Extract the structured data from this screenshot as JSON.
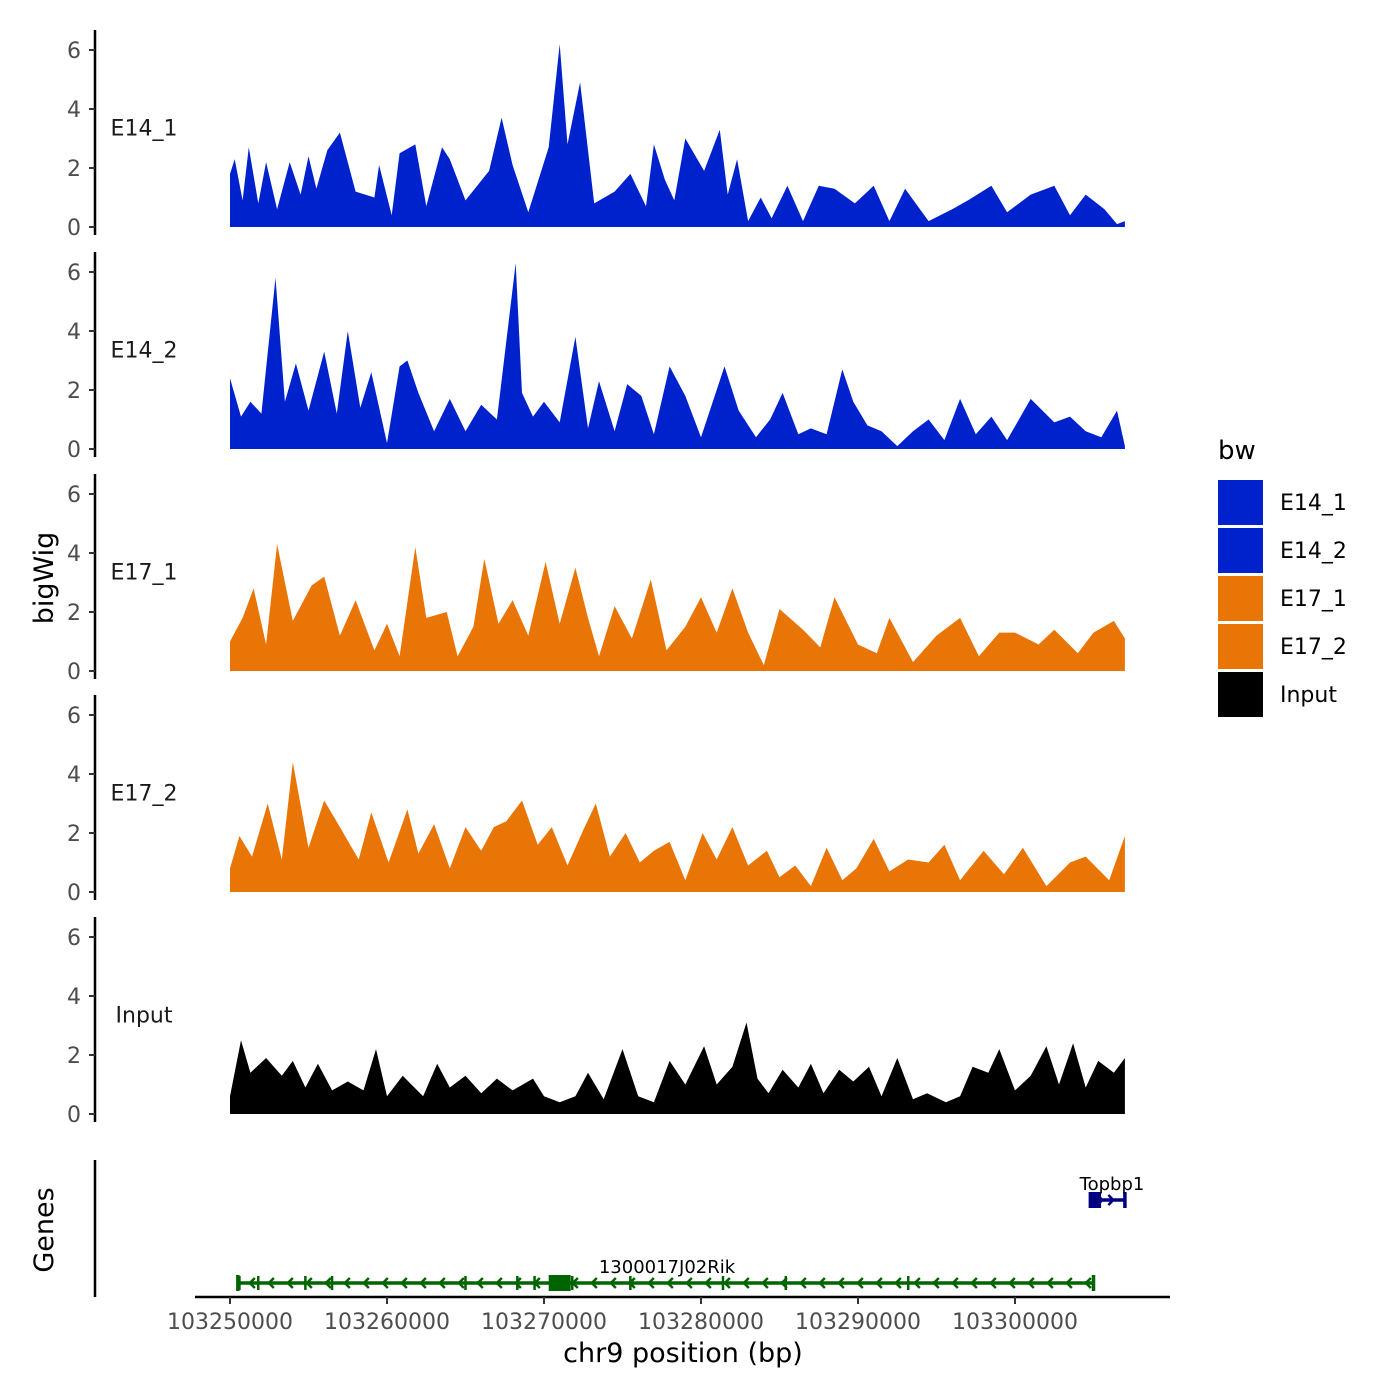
{
  "chart_data": {
    "type": "area",
    "chromosome": "chr9",
    "x_range": [
      103250000,
      103307000
    ],
    "xlabel": "chr9 position (bp)",
    "ylabel": "bigWig",
    "genes_label": "Genes",
    "x_ticks": [
      103250000,
      103260000,
      103270000,
      103280000,
      103290000,
      103300000
    ],
    "x_tick_labels": [
      "103250000",
      "103260000",
      "103270000",
      "103280000",
      "103290000",
      "103300000"
    ],
    "y_ticks": [
      0,
      2,
      4,
      6
    ],
    "y_tick_labels": [
      "0",
      "2",
      "4",
      "6"
    ],
    "ylim": [
      0,
      6.7
    ],
    "legend": {
      "title": "bw",
      "position": "right",
      "entries": [
        {
          "label": "E14_1",
          "color": "#0022CC"
        },
        {
          "label": "E14_2",
          "color": "#0022CC"
        },
        {
          "label": "E17_1",
          "color": "#E87506"
        },
        {
          "label": "E17_2",
          "color": "#E87506"
        },
        {
          "label": "Input",
          "color": "#000000"
        }
      ]
    },
    "tracks": [
      {
        "name": "E14_1",
        "color": "#0022CC",
        "x": [
          103250000,
          103250300,
          103250800,
          103251200,
          103251800,
          103252300,
          103253000,
          103253800,
          103254500,
          103255000,
          103255500,
          103256200,
          103257000,
          103258000,
          103259200,
          103259500,
          103260300,
          103260800,
          103261800,
          103262500,
          103263500,
          103264000,
          103265000,
          103266500,
          103267300,
          103268000,
          103269000,
          103270300,
          103271000,
          103271500,
          103272300,
          103273200,
          103274500,
          103275500,
          103276500,
          103277000,
          103277700,
          103278300,
          103279000,
          103280200,
          103281200,
          103281700,
          103282300,
          103283000,
          103283800,
          103284500,
          103285500,
          103286500,
          103287500,
          103288500,
          103289800,
          103291000,
          103292000,
          103293000,
          103294500,
          103296000,
          103297000,
          103298500,
          103299500,
          103301000,
          103302500,
          103303500,
          103304500,
          103305700,
          103306500,
          103307000
        ],
        "y": [
          1.8,
          2.3,
          0.9,
          2.7,
          0.8,
          2.2,
          0.6,
          2.2,
          1.1,
          2.4,
          1.3,
          2.6,
          3.2,
          1.2,
          1.0,
          2.1,
          0.4,
          2.5,
          2.8,
          0.7,
          2.7,
          2.3,
          0.9,
          1.9,
          3.7,
          2.1,
          0.5,
          2.7,
          6.2,
          2.8,
          4.9,
          0.8,
          1.2,
          1.8,
          0.7,
          2.8,
          1.6,
          0.9,
          3.0,
          1.9,
          3.3,
          1.1,
          2.3,
          0.2,
          1.0,
          0.3,
          1.4,
          0.2,
          1.4,
          1.3,
          0.8,
          1.4,
          0.2,
          1.3,
          0.2,
          0.6,
          0.9,
          1.4,
          0.5,
          1.1,
          1.4,
          0.4,
          1.1,
          0.6,
          0.1,
          0.2
        ]
      },
      {
        "name": "E14_2",
        "color": "#0022CC",
        "x": [
          103250000,
          103250700,
          103251300,
          103252000,
          103252900,
          103253500,
          103254200,
          103255000,
          103256000,
          103256800,
          103257500,
          103258300,
          103259000,
          103260000,
          103260800,
          103261300,
          103262000,
          103263000,
          103264000,
          103265000,
          103266000,
          103267000,
          103268200,
          103268600,
          103269300,
          103270000,
          103271000,
          103272000,
          103272800,
          103273500,
          103274500,
          103275300,
          103276200,
          103277000,
          103278000,
          103279000,
          103280000,
          103281500,
          103282400,
          103283500,
          103284400,
          103285200,
          103286200,
          103287000,
          103288000,
          103289000,
          103289700,
          103290600,
          103291500,
          103292500,
          103293500,
          103294500,
          103295500,
          103296500,
          103297500,
          103298500,
          103299500,
          103301000,
          103302500,
          103303500,
          103304500,
          103305500,
          103306500,
          103307000
        ],
        "y": [
          2.4,
          1.1,
          1.6,
          1.2,
          5.8,
          1.6,
          2.9,
          1.3,
          3.3,
          1.2,
          4.0,
          1.4,
          2.6,
          0.2,
          2.8,
          3.0,
          1.9,
          0.6,
          1.7,
          0.6,
          1.5,
          1.0,
          6.3,
          1.9,
          1.1,
          1.6,
          0.9,
          3.8,
          0.7,
          2.3,
          0.6,
          2.2,
          1.8,
          0.5,
          2.8,
          1.8,
          0.4,
          2.8,
          1.3,
          0.4,
          1.0,
          1.9,
          0.5,
          0.7,
          0.5,
          2.7,
          1.6,
          0.8,
          0.6,
          0.1,
          0.6,
          1.0,
          0.3,
          1.7,
          0.5,
          1.1,
          0.3,
          1.7,
          0.9,
          1.1,
          0.6,
          0.4,
          1.3,
          0.1
        ]
      },
      {
        "name": "E17_1",
        "color": "#E87506",
        "x": [
          103250000,
          103250800,
          103251500,
          103252300,
          103253000,
          103254000,
          103255200,
          103256000,
          103257000,
          103258000,
          103259200,
          103260000,
          103260800,
          103261800,
          103262500,
          103263800,
          103264500,
          103265500,
          103266200,
          103267100,
          103268000,
          103269000,
          103270100,
          103271000,
          103272000,
          103272800,
          103273500,
          103274500,
          103275600,
          103276800,
          103277800,
          103279000,
          103280000,
          103281000,
          103282000,
          103283000,
          103284000,
          103285000,
          103286500,
          103287600,
          103288500,
          103290000,
          103291200,
          103292000,
          103293500,
          103295000,
          103296500,
          103297700,
          103299000,
          103300000,
          103301500,
          103302500,
          103304000,
          103305000,
          103306300,
          103307000
        ],
        "y": [
          1.0,
          1.8,
          2.8,
          0.9,
          4.3,
          1.7,
          2.9,
          3.2,
          1.2,
          2.4,
          0.7,
          1.6,
          0.5,
          4.2,
          1.8,
          2.0,
          0.5,
          1.5,
          3.8,
          1.6,
          2.4,
          1.2,
          3.7,
          1.6,
          3.5,
          1.8,
          0.5,
          2.2,
          1.1,
          3.1,
          0.7,
          1.5,
          2.5,
          1.3,
          2.8,
          1.3,
          0.2,
          2.1,
          1.4,
          0.8,
          2.5,
          0.9,
          0.6,
          1.8,
          0.3,
          1.2,
          1.8,
          0.5,
          1.3,
          1.3,
          0.9,
          1.4,
          0.6,
          1.3,
          1.7,
          1.1
        ]
      },
      {
        "name": "E17_2",
        "color": "#E87506",
        "x": [
          103250000,
          103250600,
          103251400,
          103252400,
          103253300,
          103254000,
          103255000,
          103256000,
          103257000,
          103258200,
          103259000,
          103260100,
          103261300,
          103262000,
          103263000,
          103264000,
          103265000,
          103266000,
          103266800,
          103267600,
          103268600,
          103269600,
          103270500,
          103271500,
          103272500,
          103273300,
          103274200,
          103275200,
          103276100,
          103277000,
          103278000,
          103279000,
          103280100,
          103281000,
          103282000,
          103283000,
          103284200,
          103285000,
          103286000,
          103287000,
          103288000,
          103289000,
          103289900,
          103291000,
          103292000,
          103293200,
          103294500,
          103295500,
          103296500,
          103298000,
          103299300,
          103300500,
          103302000,
          103303500,
          103304500,
          103306000,
          103307000
        ],
        "y": [
          0.8,
          1.9,
          1.2,
          3.0,
          1.1,
          4.4,
          1.5,
          3.1,
          2.2,
          1.1,
          2.7,
          1.0,
          2.8,
          1.3,
          2.3,
          0.8,
          2.2,
          1.4,
          2.2,
          2.4,
          3.1,
          1.6,
          2.2,
          0.9,
          2.1,
          3.0,
          1.2,
          2.0,
          1.0,
          1.4,
          1.7,
          0.4,
          2.0,
          1.1,
          2.2,
          0.9,
          1.4,
          0.5,
          0.9,
          0.2,
          1.5,
          0.4,
          0.8,
          1.8,
          0.7,
          1.1,
          1.0,
          1.6,
          0.4,
          1.4,
          0.6,
          1.5,
          0.2,
          1.0,
          1.2,
          0.4,
          1.9
        ]
      },
      {
        "name": "Input",
        "color": "#000000",
        "x": [
          103250000,
          103250700,
          103251300,
          103252300,
          103253300,
          103254000,
          103254800,
          103255600,
          103256500,
          103257500,
          103258500,
          103259300,
          103260000,
          103261000,
          103262300,
          103263200,
          103264000,
          103265000,
          103266000,
          103267000,
          103268000,
          103269300,
          103270000,
          103271000,
          103272000,
          103272800,
          103273800,
          103275000,
          103276000,
          103277000,
          103278000,
          103279000,
          103280200,
          103281000,
          103282000,
          103282900,
          103283600,
          103284300,
          103285200,
          103286200,
          103287000,
          103287800,
          103288800,
          103289700,
          103290700,
          103291500,
          103292500,
          103293500,
          103294400,
          103295600,
          103296500,
          103297300,
          103298300,
          103299000,
          103300000,
          103301000,
          103302000,
          103302800,
          103303700,
          103304500,
          103305300,
          103306300,
          103307000
        ],
        "y": [
          0.6,
          2.5,
          1.4,
          1.9,
          1.3,
          1.8,
          0.9,
          1.7,
          0.8,
          1.1,
          0.8,
          2.2,
          0.6,
          1.3,
          0.6,
          1.7,
          0.9,
          1.3,
          0.7,
          1.2,
          0.8,
          1.2,
          0.6,
          0.4,
          0.6,
          1.4,
          0.5,
          2.2,
          0.6,
          0.4,
          1.8,
          1.0,
          2.3,
          1.0,
          1.6,
          3.1,
          1.2,
          0.7,
          1.5,
          0.9,
          1.7,
          0.7,
          1.5,
          1.1,
          1.6,
          0.6,
          1.9,
          0.5,
          0.7,
          0.4,
          0.6,
          1.6,
          1.4,
          2.2,
          0.8,
          1.3,
          2.3,
          1.0,
          2.4,
          0.9,
          1.8,
          1.4,
          1.9
        ]
      }
    ],
    "genes": [
      {
        "name": "1300017J02Rik",
        "strand": "-",
        "start": 103250500,
        "end": 103305000,
        "color": "#006400",
        "exons": [
          103250600,
          103251800,
          103254800,
          103256500,
          103265000,
          103268300,
          103269400,
          103270800,
          103271800,
          103275500,
          103281400,
          103285400,
          103293200
        ]
      },
      {
        "name": "Topbp1",
        "strand": "+",
        "start": 103304800,
        "end": 103307000,
        "color": "#000080",
        "exons": [
          103305300
        ]
      }
    ]
  }
}
